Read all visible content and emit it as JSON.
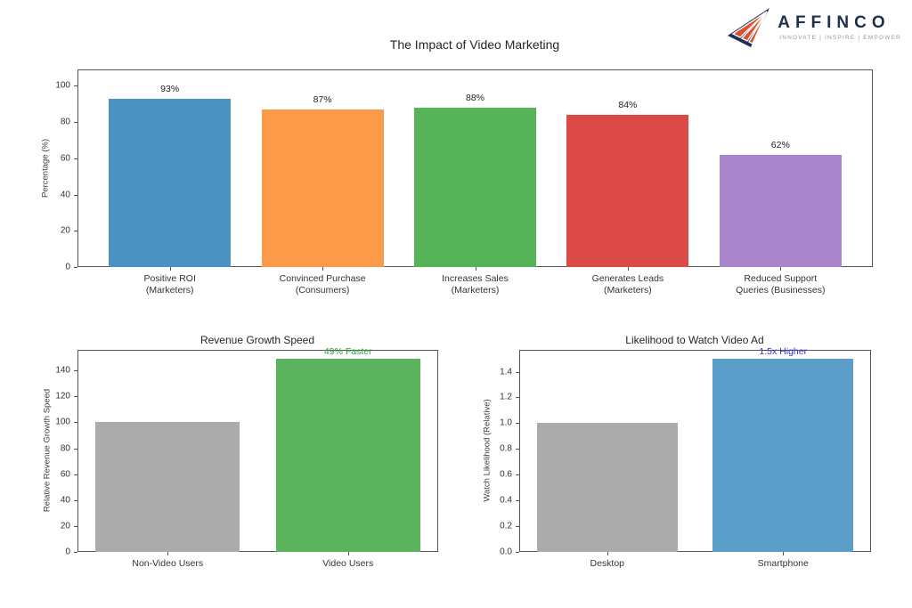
{
  "logo": {
    "name": "AFFINCO",
    "tagline": "INNOVATE | INSPIRE | EMPOWER",
    "navy_color": "#20304f",
    "accent_color": "#df4f2c"
  },
  "chart_data": [
    {
      "type": "bar",
      "title": "The Impact of Video Marketing",
      "xlabel": "",
      "ylabel": "Percentage (%)",
      "categories": [
        "Positive ROI\n(Marketers)",
        "Convinced Purchase\n(Consumers)",
        "Increases Sales\n(Marketers)",
        "Generates Leads\n(Marketers)",
        "Reduced Support\nQueries (Businesses)"
      ],
      "values": [
        93,
        87,
        88,
        84,
        62
      ],
      "value_labels": [
        "93%",
        "87%",
        "88%",
        "84%",
        "62%"
      ],
      "bar_colors": [
        "#4b92c3",
        "#fb9a48",
        "#57b357",
        "#db4a47",
        "#a986cb"
      ],
      "ylim": [
        0,
        109
      ],
      "yticks": [
        0,
        20,
        40,
        60,
        80,
        100
      ],
      "ytick_labels": [
        "0",
        "20",
        "40",
        "60",
        "80",
        "100"
      ],
      "grid": false,
      "legend": null,
      "annotations": []
    },
    {
      "type": "bar",
      "title": "Revenue Growth Speed",
      "xlabel": "",
      "ylabel": "Relative Revenue Growth Speed",
      "categories": [
        "Non-Video Users",
        "Video Users"
      ],
      "values": [
        100,
        149
      ],
      "value_labels": [
        "",
        ""
      ],
      "bar_colors": [
        "#ababab",
        "#5cb35e"
      ],
      "ylim": [
        0,
        156
      ],
      "yticks": [
        0,
        20,
        40,
        60,
        80,
        100,
        120,
        140
      ],
      "ytick_labels": [
        "0",
        "20",
        "40",
        "60",
        "80",
        "100",
        "120",
        "140"
      ],
      "grid": false,
      "legend": null,
      "annotations": [
        {
          "text": "49% Faster",
          "color": "#2e9e3e",
          "bar_index": 1
        }
      ]
    },
    {
      "type": "bar",
      "title": "Likelihood to Watch Video Ad",
      "xlabel": "",
      "ylabel": "Watch Likelihood (Relative)",
      "categories": [
        "Desktop",
        "Smartphone"
      ],
      "values": [
        1.0,
        1.5
      ],
      "value_labels": [
        "",
        ""
      ],
      "bar_colors": [
        "#ababab",
        "#5b9ec9"
      ],
      "ylim": [
        0,
        1.57
      ],
      "yticks": [
        0.0,
        0.2,
        0.4,
        0.6,
        0.8,
        1.0,
        1.2,
        1.4
      ],
      "ytick_labels": [
        "0.0",
        "0.2",
        "0.4",
        "0.6",
        "0.8",
        "1.0",
        "1.2",
        "1.4"
      ],
      "grid": false,
      "legend": null,
      "annotations": [
        {
          "text": "1.5x Higher",
          "color": "#3333cc",
          "bar_index": 1
        }
      ]
    }
  ]
}
